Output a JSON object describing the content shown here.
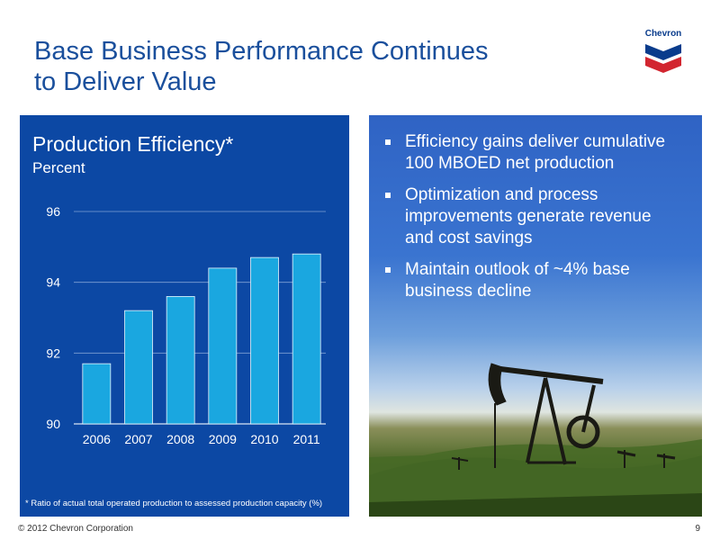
{
  "slide": {
    "title_line1": "Base Business Performance Continues",
    "title_line2": "to Deliver Value"
  },
  "logo": {
    "text": "Chevron",
    "colors": {
      "blue": "#0a3c8c",
      "red": "#d22630"
    }
  },
  "chart_data": {
    "type": "bar",
    "title": "Production Efficiency*",
    "ylabel": "Percent",
    "categories": [
      "2006",
      "2007",
      "2008",
      "2009",
      "2010",
      "2011"
    ],
    "values": [
      91.7,
      93.2,
      93.6,
      94.4,
      94.7,
      94.8
    ],
    "ylim": [
      90,
      96
    ],
    "yticks": [
      "96",
      "94",
      "92",
      "90"
    ],
    "grid": true,
    "bar_color": "#1aa7e0",
    "background_color": "#0c48a4",
    "footnote": "* Ratio of actual total operated production to assessed production capacity (%)"
  },
  "bullets": [
    "Efficiency gains deliver cumulative 100 MBOED net production",
    "Optimization and process improvements generate revenue and cost savings",
    "Maintain outlook of ~4% base business decline"
  ],
  "footer": {
    "copyright": "© 2012 Chevron Corporation",
    "page_number": "9"
  }
}
